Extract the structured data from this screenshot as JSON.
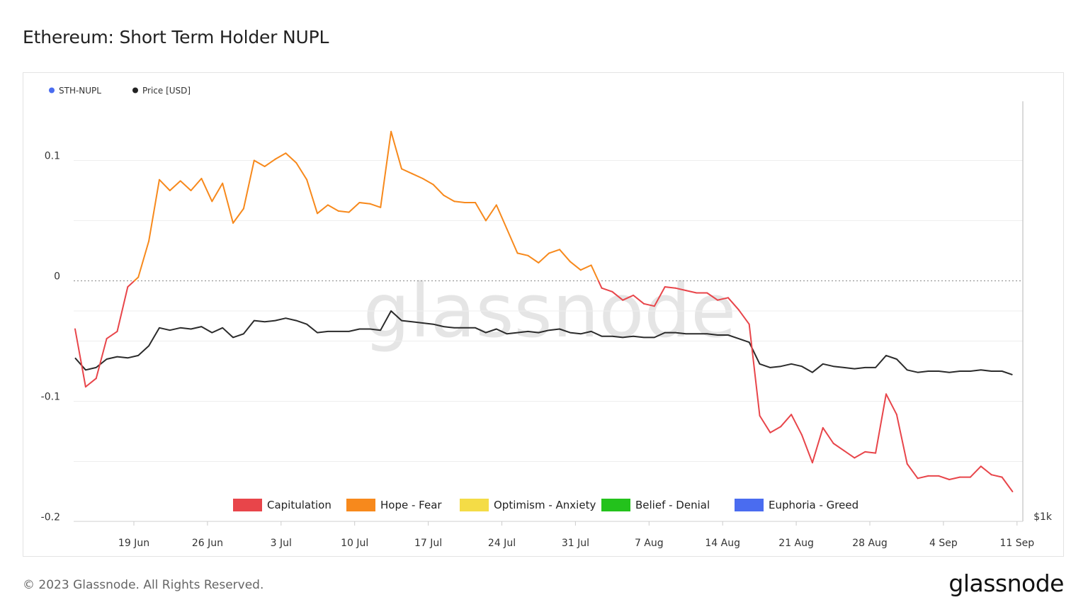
{
  "page": {
    "title": "Ethereum: Short Term Holder NUPL",
    "copyright": "© 2023 Glassnode. All Rights Reserved.",
    "brand": "glassnode",
    "watermark": "glassnode"
  },
  "chart_data": {
    "type": "line",
    "title": "Ethereum: Short Term Holder NUPL",
    "legend": [
      {
        "label": "STH-NUPL",
        "color": "#4a6cf0"
      },
      {
        "label": "Price [USD]",
        "color": "#222222"
      }
    ],
    "legend_placement": "top-left",
    "x_ticks": [
      "19 Jun",
      "26 Jun",
      "3 Jul",
      "10 Jul",
      "17 Jul",
      "24 Jul",
      "31 Jul",
      "7 Aug",
      "14 Aug",
      "21 Aug",
      "28 Aug",
      "4 Sep",
      "11 Sep"
    ],
    "x_range": [
      "2023-06-13",
      "2023-09-10"
    ],
    "y_left": {
      "ticks": [
        0.1,
        0,
        -0.1,
        -0.2
      ],
      "labels": [
        "0.1",
        "0",
        "-0.1",
        "-0.2"
      ],
      "range": [
        -0.2,
        0.11
      ]
    },
    "y_right": {
      "labels": [
        "$1k"
      ]
    },
    "zones": [
      {
        "label": "Capitulation",
        "color": "#e8454a",
        "below": 0
      },
      {
        "label": "Hope - Fear",
        "color": "#f7891c",
        "from": 0,
        "to": 0.25
      },
      {
        "label": "Optimism - Anxiety",
        "color": "#f4dc46",
        "from": 0.25,
        "to": 0.5
      },
      {
        "label": "Belief - Denial",
        "color": "#23c21c",
        "from": 0.5,
        "to": 0.75
      },
      {
        "label": "Euphoria - Greed",
        "color": "#4a6cf0",
        "above": 0.75
      }
    ],
    "zero_line": true,
    "series": [
      {
        "name": "STH-NUPL",
        "values": [
          -0.04,
          -0.088,
          -0.081,
          -0.048,
          -0.042,
          -0.005,
          0.003,
          0.033,
          0.084,
          0.075,
          0.083,
          0.075,
          0.085,
          0.066,
          0.081,
          0.048,
          0.06,
          0.1,
          0.095,
          0.101,
          0.106,
          0.098,
          0.084,
          0.056,
          0.063,
          0.058,
          0.057,
          0.065,
          0.064,
          0.061,
          0.124,
          0.093,
          0.089,
          0.085,
          0.08,
          0.071,
          0.066,
          0.065,
          0.065,
          0.05,
          0.063,
          0.043,
          0.023,
          0.021,
          0.015,
          0.023,
          0.026,
          0.016,
          0.009,
          0.013,
          -0.006,
          -0.009,
          -0.016,
          -0.012,
          -0.019,
          -0.021,
          -0.005,
          -0.006,
          -0.008,
          -0.01,
          -0.01,
          -0.016,
          -0.014,
          -0.024,
          -0.036,
          -0.112,
          -0.126,
          -0.121,
          -0.111,
          -0.128,
          -0.151,
          -0.122,
          -0.135,
          -0.141,
          -0.147,
          -0.142,
          -0.143,
          -0.094,
          -0.111,
          -0.152,
          -0.164,
          -0.162,
          -0.162,
          -0.165,
          -0.163,
          -0.163,
          -0.154,
          -0.161,
          -0.163,
          -0.175
        ]
      },
      {
        "name": "Price [USD]",
        "values": [
          -0.064,
          -0.074,
          -0.072,
          -0.065,
          -0.063,
          -0.064,
          -0.062,
          -0.054,
          -0.039,
          -0.041,
          -0.039,
          -0.04,
          -0.038,
          -0.043,
          -0.039,
          -0.047,
          -0.044,
          -0.033,
          -0.034,
          -0.033,
          -0.031,
          -0.033,
          -0.036,
          -0.043,
          -0.042,
          -0.042,
          -0.042,
          -0.04,
          -0.04,
          -0.041,
          -0.025,
          -0.033,
          -0.034,
          -0.035,
          -0.036,
          -0.038,
          -0.039,
          -0.039,
          -0.039,
          -0.043,
          -0.04,
          -0.044,
          -0.043,
          -0.042,
          -0.043,
          -0.041,
          -0.04,
          -0.043,
          -0.044,
          -0.042,
          -0.046,
          -0.046,
          -0.047,
          -0.046,
          -0.047,
          -0.047,
          -0.043,
          -0.043,
          -0.044,
          -0.044,
          -0.044,
          -0.045,
          -0.045,
          -0.048,
          -0.051,
          -0.069,
          -0.072,
          -0.071,
          -0.069,
          -0.071,
          -0.076,
          -0.069,
          -0.071,
          -0.072,
          -0.073,
          -0.072,
          -0.072,
          -0.062,
          -0.065,
          -0.074,
          -0.076,
          -0.075,
          -0.075,
          -0.076,
          -0.075,
          -0.075,
          -0.074,
          -0.075,
          -0.075,
          -0.078
        ]
      }
    ]
  }
}
